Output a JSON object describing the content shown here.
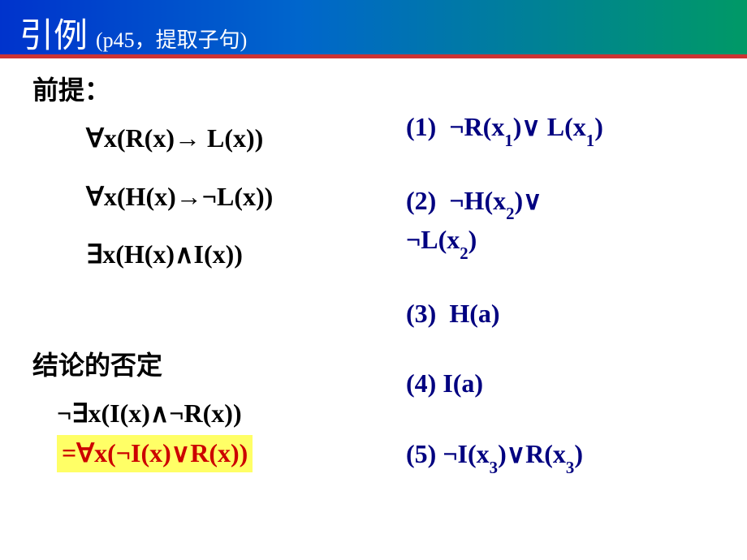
{
  "header": {
    "main": "引例",
    "sub": "(p45，提取子句)"
  },
  "colors": {
    "header_grad_start": "#0033cc",
    "header_grad_mid": "#0066cc",
    "header_grad_end": "#009966",
    "header_underline": "#cc3333",
    "left_text": "#000000",
    "right_text": "#000080",
    "highlight_bg": "#ffff66",
    "highlight_text": "#cc0000",
    "background": "#ffffff"
  },
  "fonts": {
    "header_main_size": 42,
    "header_sub_size": 26,
    "body_size": 32
  },
  "left": {
    "premise_head": "前提：",
    "premises": [
      "∀x(R(x)→ L(x))",
      "∀x(H(x)→¬L(x))",
      "∃x(H(x)∧I(x))"
    ],
    "neg_concl_head": "结论的否定",
    "neg_concl": "¬∃x(I(x)∧¬R(x))",
    "neg_concl_eq": "=∀x(¬I(x)∨R(x))"
  },
  "right": {
    "items": [
      "(1)  ¬R(x₁)∨ L(x₁)",
      "(2)  ¬H(x₂)∨ ¬L(x₂)",
      "(3)  H(a)",
      "(4)  I(a)",
      "(5) ¬I(x₃)∨R(x₃)"
    ]
  }
}
